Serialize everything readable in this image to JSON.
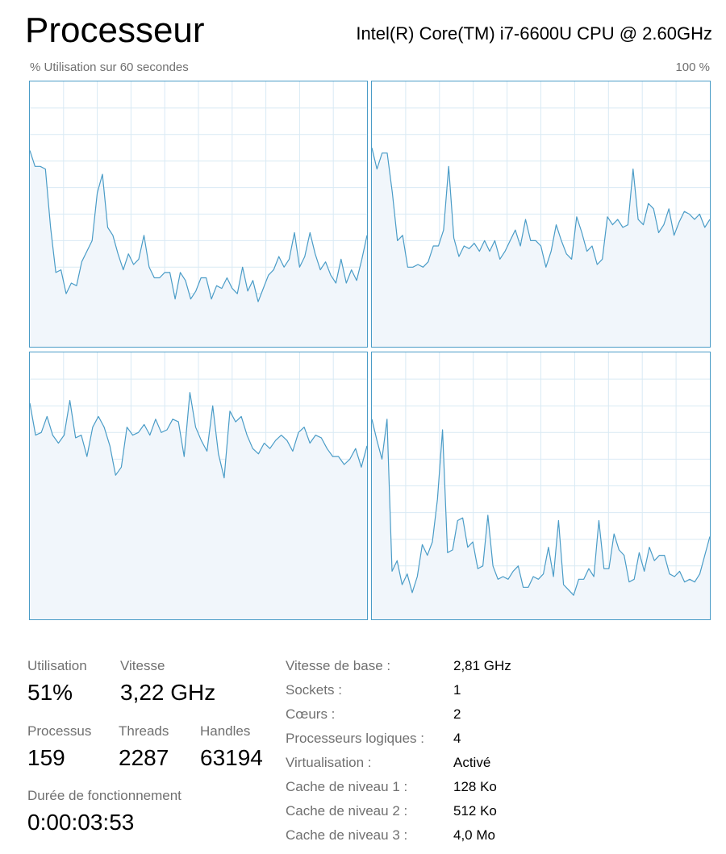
{
  "header": {
    "title": "Processeur",
    "cpu_name": "Intel(R) Core(TM) i7-6600U CPU @ 2.60GHz",
    "axis_left_label": "% Utilisation sur 60 secondes",
    "axis_right_label": "100 %"
  },
  "colors": {
    "graph_border": "#4A9CC7",
    "graph_line": "#4A9CC7",
    "graph_fill": "#F1F6FB",
    "graph_grid": "#D9EAF4"
  },
  "chart_data": {
    "type": "area",
    "ylim": [
      0,
      100
    ],
    "grid": true,
    "series": [
      {
        "values": [
          74,
          68,
          68,
          67,
          45,
          28,
          29,
          20,
          24,
          23,
          32,
          36,
          40,
          58,
          65,
          45,
          42,
          35,
          29,
          35,
          31,
          33,
          42,
          30,
          26,
          26,
          28,
          28,
          18,
          28,
          25,
          18,
          21,
          26,
          26,
          18,
          23,
          22,
          26,
          22,
          20,
          30,
          21,
          25,
          17,
          22,
          27,
          29,
          34,
          30,
          33,
          43,
          30,
          34,
          43,
          35,
          29,
          32,
          27,
          24,
          33,
          24,
          29,
          25,
          33,
          42
        ]
      },
      {
        "values": [
          75,
          67,
          73,
          73,
          58,
          40,
          42,
          30,
          30,
          31,
          30,
          32,
          38,
          38,
          44,
          68,
          41,
          34,
          38,
          37,
          39,
          36,
          40,
          36,
          40,
          33,
          36,
          40,
          44,
          38,
          48,
          40,
          40,
          38,
          30,
          36,
          46,
          40,
          35,
          33,
          49,
          43,
          36,
          38,
          31,
          33,
          49,
          46,
          48,
          45,
          46,
          67,
          48,
          46,
          54,
          52,
          43,
          46,
          52,
          42,
          47,
          51,
          50,
          48,
          50,
          45,
          48
        ]
      },
      {
        "values": [
          81,
          69,
          70,
          76,
          69,
          66,
          69,
          82,
          68,
          69,
          61,
          72,
          76,
          72,
          65,
          54,
          57,
          72,
          69,
          70,
          73,
          69,
          75,
          70,
          71,
          75,
          74,
          61,
          85,
          72,
          67,
          63,
          80,
          62,
          53,
          78,
          74,
          76,
          69,
          64,
          62,
          66,
          64,
          67,
          69,
          67,
          63,
          70,
          72,
          66,
          69,
          68,
          64,
          61,
          61,
          58,
          60,
          64,
          57,
          65
        ]
      },
      {
        "values": [
          75,
          67,
          60,
          75,
          18,
          22,
          13,
          17,
          10,
          16,
          28,
          24,
          29,
          45,
          71,
          25,
          26,
          37,
          38,
          27,
          29,
          19,
          20,
          39,
          20,
          15,
          16,
          15,
          18,
          20,
          12,
          12,
          16,
          15,
          17,
          27,
          16,
          37,
          13,
          11,
          9,
          15,
          15,
          19,
          16,
          37,
          19,
          19,
          32,
          26,
          24,
          14,
          15,
          25,
          18,
          27,
          22,
          24,
          24,
          17,
          16,
          18,
          14,
          15,
          14,
          17,
          24,
          31
        ]
      }
    ]
  },
  "stats": {
    "utilisation": {
      "label": "Utilisation",
      "value": "51%"
    },
    "vitesse": {
      "label": "Vitesse",
      "value": "3,22 GHz"
    },
    "processus": {
      "label": "Processus",
      "value": "159"
    },
    "threads": {
      "label": "Threads",
      "value": "2287"
    },
    "handles": {
      "label": "Handles",
      "value": "63194"
    },
    "uptime": {
      "label": "Durée de fonctionnement",
      "value": "0:00:03:53"
    }
  },
  "details": [
    {
      "label": "Vitesse de base :",
      "value": "2,81 GHz"
    },
    {
      "label": "Sockets :",
      "value": "1"
    },
    {
      "label": "Cœurs :",
      "value": "2"
    },
    {
      "label": "Processeurs logiques :",
      "value": "4"
    },
    {
      "label": "Virtualisation :",
      "value": "Activé"
    },
    {
      "label": "Cache de niveau 1 :",
      "value": "128 Ko"
    },
    {
      "label": "Cache de niveau 2 :",
      "value": "512 Ko"
    },
    {
      "label": "Cache de niveau 3 :",
      "value": "4,0 Mo"
    }
  ]
}
